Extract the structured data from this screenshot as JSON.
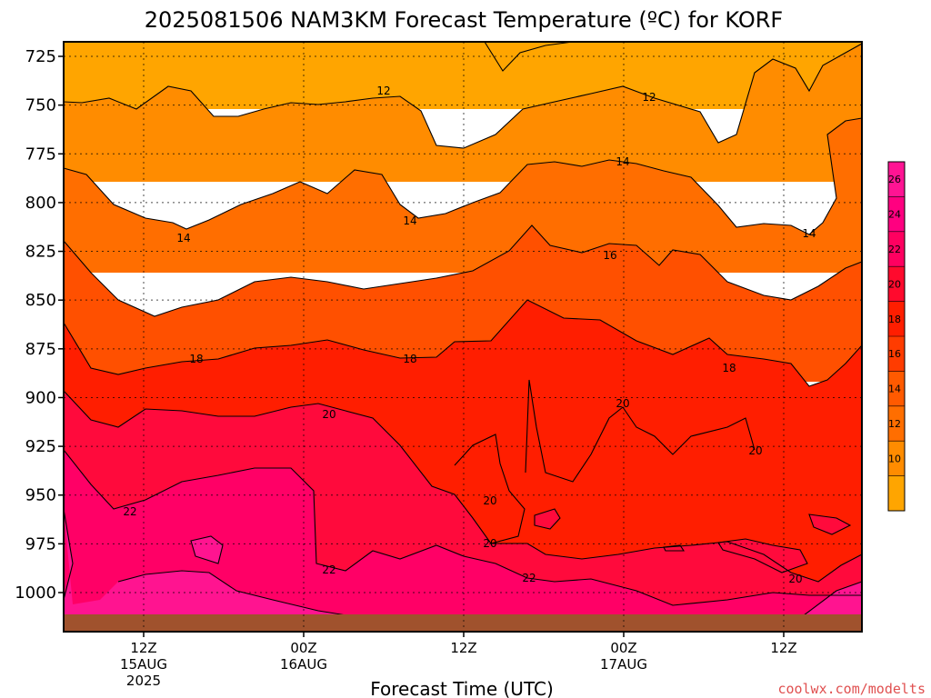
{
  "chart_data": {
    "type": "heatmap",
    "title": "2025081506 NAM3KM Forecast Temperature (ºC) for KORF",
    "xlabel": "Forecast Time (UTC)",
    "ylabel": "",
    "credit": "coolwx.com/modelts",
    "y_scale": "pressure (hPa), inverted",
    "ylim": [
      1020,
      713
    ],
    "y_ticks": [
      725,
      750,
      775,
      800,
      825,
      850,
      875,
      900,
      925,
      950,
      975,
      1000
    ],
    "y_tick_labels": [
      "725",
      "750",
      "775",
      "800",
      "825",
      "850",
      "875",
      "900",
      "925",
      "950",
      "975",
      "1000"
    ],
    "x_ticks": [
      {
        "l1": "12Z",
        "l2": "15AUG",
        "l3": "2025"
      },
      {
        "l1": "00Z",
        "l2": "16AUG",
        "l3": ""
      },
      {
        "l1": "12Z",
        "l2": "",
        "l3": ""
      },
      {
        "l1": "00Z",
        "l2": "17AUG",
        "l3": ""
      },
      {
        "l1": "12Z",
        "l2": "",
        "l3": ""
      }
    ],
    "grid": true,
    "colorbar": {
      "ticks": [
        "10",
        "12",
        "14",
        "16",
        "18",
        "20",
        "22",
        "24",
        "26"
      ],
      "colors": [
        "#ffa500",
        "#ff8c00",
        "#ff6e00",
        "#ff5a00",
        "#ff3c00",
        "#ff1e00",
        "#ff0a2d",
        "#ff0060",
        "#ff0080",
        "#ff1493"
      ]
    },
    "contours": [
      {
        "label": "12",
        "color": "#000000"
      },
      {
        "label": "14",
        "color": "#000000"
      },
      {
        "label": "16",
        "color": "#000000"
      },
      {
        "label": "18",
        "color": "#000000"
      },
      {
        "label": "20",
        "color": "#000000"
      },
      {
        "label": "22",
        "color": "#000000"
      }
    ],
    "bands": [
      {
        "name": "10-12",
        "color": "#ffa500"
      },
      {
        "name": "12-14",
        "color": "#ff8c00"
      },
      {
        "name": "14-16",
        "color": "#ff6e00"
      },
      {
        "name": "16-18",
        "color": "#ff5000"
      },
      {
        "name": "18-20",
        "color": "#ff1e00"
      },
      {
        "name": "20-22",
        "color": "#ff0a3c"
      },
      {
        "name": "22-24",
        "color": "#ff0066"
      },
      {
        "name": "24-26",
        "color": "#ff1490"
      }
    ],
    "ground_color": "#a0522d"
  }
}
